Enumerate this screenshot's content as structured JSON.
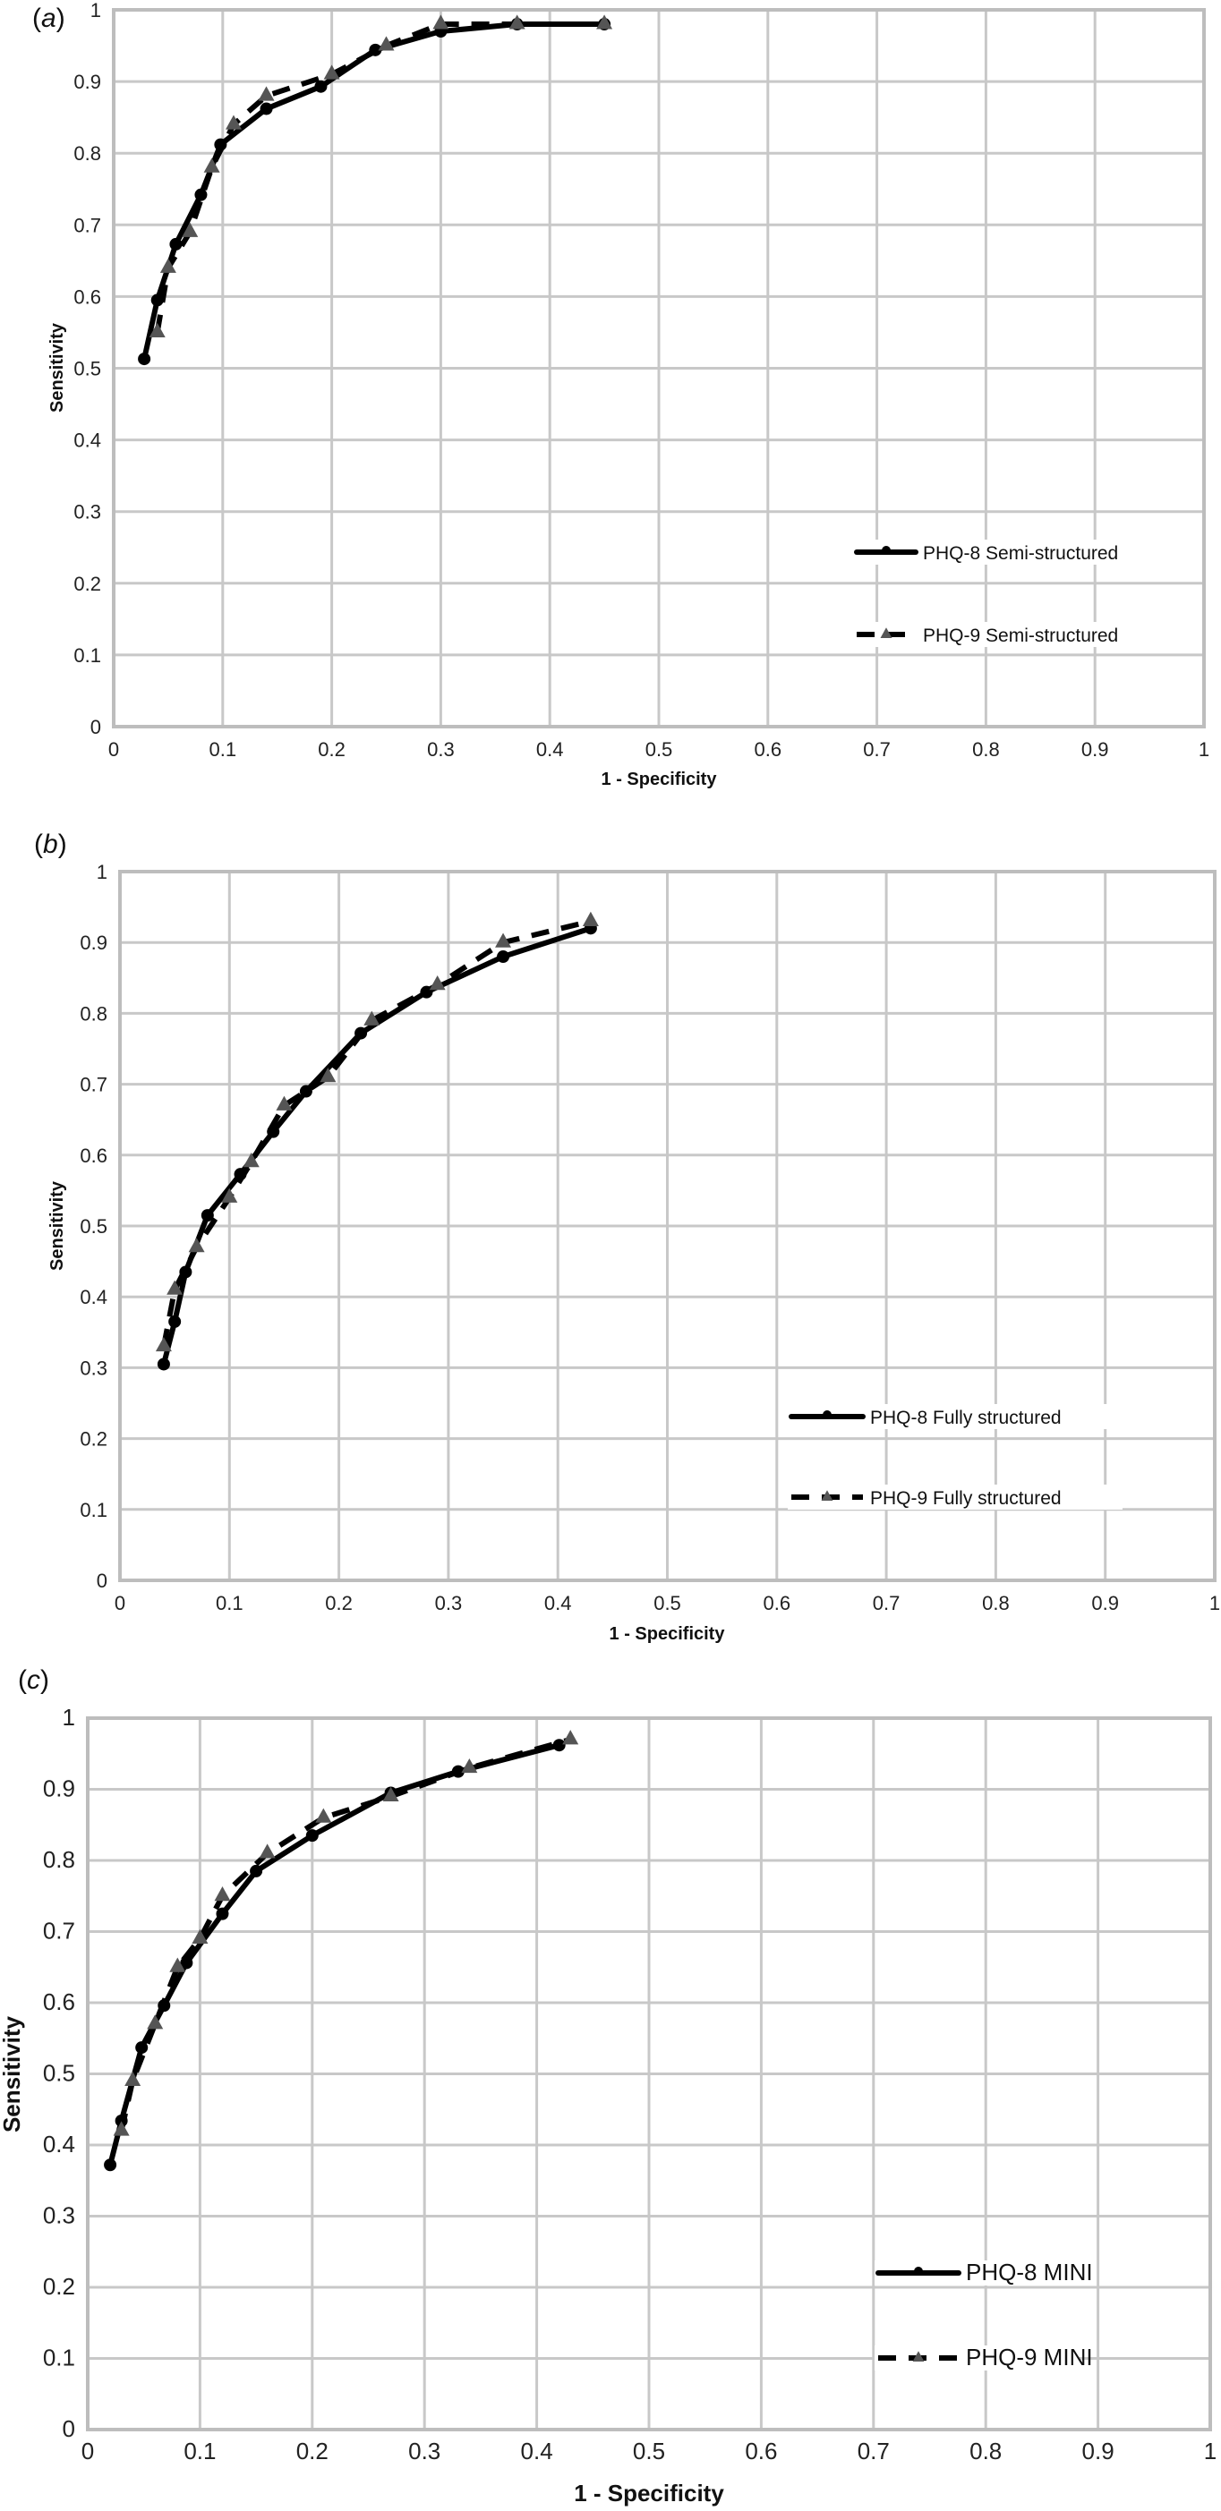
{
  "chart_data": [
    {
      "type": "line",
      "panel_label": "a",
      "title": "",
      "xlabel": "1 - Specificity",
      "ylabel": "Sensitivity",
      "xlim": [
        0,
        1
      ],
      "ylim": [
        0,
        1
      ],
      "x_ticks": [
        "0",
        "0.1",
        "0.2",
        "0.3",
        "0.4",
        "0.5",
        "0.6",
        "0.7",
        "0.8",
        "0.9",
        "1"
      ],
      "y_ticks": [
        "0",
        "0.1",
        "0.2",
        "0.3",
        "0.4",
        "0.5",
        "0.6",
        "0.7",
        "0.8",
        "0.9",
        "1"
      ],
      "grid": true,
      "legend_position": "lower right",
      "series": [
        {
          "name": "PHQ-8 Semi-structured",
          "style": "solid",
          "marker": "circle",
          "color": "#000000",
          "x": [
            0.028,
            0.04,
            0.057,
            0.08,
            0.098,
            0.14,
            0.19,
            0.24,
            0.3,
            0.37,
            0.45
          ],
          "y": [
            0.513,
            0.595,
            0.673,
            0.742,
            0.812,
            0.862,
            0.893,
            0.944,
            0.97,
            0.98,
            0.98
          ]
        },
        {
          "name": "PHQ-9 Semi-structured",
          "style": "dashed",
          "marker": "triangle",
          "color": "#000000",
          "marker_color": "#555555",
          "x": [
            0.04,
            0.05,
            0.07,
            0.09,
            0.11,
            0.14,
            0.2,
            0.25,
            0.3,
            0.37,
            0.45
          ],
          "y": [
            0.55,
            0.64,
            0.69,
            0.78,
            0.84,
            0.88,
            0.91,
            0.95,
            0.98,
            0.98,
            0.98
          ]
        }
      ]
    },
    {
      "type": "line",
      "panel_label": "b",
      "title": "",
      "xlabel": "1 - Specificity",
      "ylabel": "Sensitivity",
      "xlim": [
        0,
        1
      ],
      "ylim": [
        0,
        1
      ],
      "x_ticks": [
        "0",
        "0.1",
        "0.2",
        "0.3",
        "0.4",
        "0.5",
        "0.6",
        "0.7",
        "0.8",
        "0.9",
        "1"
      ],
      "y_ticks": [
        "0",
        "0.1",
        "0.2",
        "0.3",
        "0.4",
        "0.5",
        "0.6",
        "0.7",
        "0.8",
        "0.9",
        "1"
      ],
      "grid": true,
      "legend_position": "lower right",
      "series": [
        {
          "name": "PHQ-8 Fully structured",
          "style": "solid",
          "marker": "circle",
          "color": "#000000",
          "x": [
            0.04,
            0.05,
            0.06,
            0.08,
            0.11,
            0.14,
            0.17,
            0.22,
            0.28,
            0.35,
            0.43
          ],
          "y": [
            0.305,
            0.365,
            0.435,
            0.515,
            0.573,
            0.633,
            0.69,
            0.772,
            0.83,
            0.88,
            0.92
          ]
        },
        {
          "name": "PHQ-9 Fully structured",
          "style": "dashed",
          "marker": "triangle",
          "color": "#000000",
          "marker_color": "#555555",
          "x": [
            0.04,
            0.05,
            0.07,
            0.1,
            0.12,
            0.15,
            0.19,
            0.23,
            0.29,
            0.35,
            0.43
          ],
          "y": [
            0.33,
            0.41,
            0.47,
            0.54,
            0.59,
            0.67,
            0.71,
            0.79,
            0.84,
            0.9,
            0.93
          ]
        }
      ]
    },
    {
      "type": "line",
      "panel_label": "c",
      "title": "",
      "xlabel": "1 - Specificity",
      "ylabel": "Sensitivity",
      "xlim": [
        0,
        1
      ],
      "ylim": [
        0,
        1
      ],
      "x_ticks": [
        "0",
        "0.1",
        "0.2",
        "0.3",
        "0.4",
        "0.5",
        "0.6",
        "0.7",
        "0.8",
        "0.9",
        "1"
      ],
      "y_ticks": [
        "0",
        "0.1",
        "0.2",
        "0.3",
        "0.4",
        "0.5",
        "0.6",
        "0.7",
        "0.8",
        "0.9",
        "1"
      ],
      "grid": true,
      "legend_position": "lower right",
      "series": [
        {
          "name": "PHQ-8 MINI",
          "style": "solid",
          "marker": "circle",
          "color": "#000000",
          "x": [
            0.02,
            0.03,
            0.048,
            0.068,
            0.088,
            0.12,
            0.15,
            0.2,
            0.27,
            0.33,
            0.42
          ],
          "y": [
            0.372,
            0.434,
            0.537,
            0.596,
            0.656,
            0.725,
            0.785,
            0.835,
            0.895,
            0.925,
            0.962
          ]
        },
        {
          "name": "PHQ-9 MINI",
          "style": "dashed",
          "marker": "triangle",
          "color": "#000000",
          "marker_color": "#555555",
          "x": [
            0.03,
            0.04,
            0.06,
            0.08,
            0.1,
            0.12,
            0.16,
            0.21,
            0.27,
            0.34,
            0.43
          ],
          "y": [
            0.42,
            0.49,
            0.57,
            0.65,
            0.69,
            0.75,
            0.81,
            0.86,
            0.89,
            0.93,
            0.97
          ]
        }
      ]
    }
  ],
  "panels": [
    {
      "label": "a",
      "x_axis_title": "1 - Specificity",
      "y_axis_title": "Sensitivity",
      "legend": [
        "PHQ-8 Semi-structured",
        "PHQ-9 Semi-structured"
      ]
    },
    {
      "label": "b",
      "x_axis_title": "1 - Specificity",
      "y_axis_title": "Sensitivity",
      "legend": [
        "PHQ-8 Fully structured",
        "PHQ-9 Fully structured"
      ]
    },
    {
      "label": "c",
      "x_axis_title": "1 - Specificity",
      "y_axis_title": "Sensitivity",
      "legend": [
        "PHQ-8 MINI",
        "PHQ-9 MINI"
      ]
    }
  ]
}
